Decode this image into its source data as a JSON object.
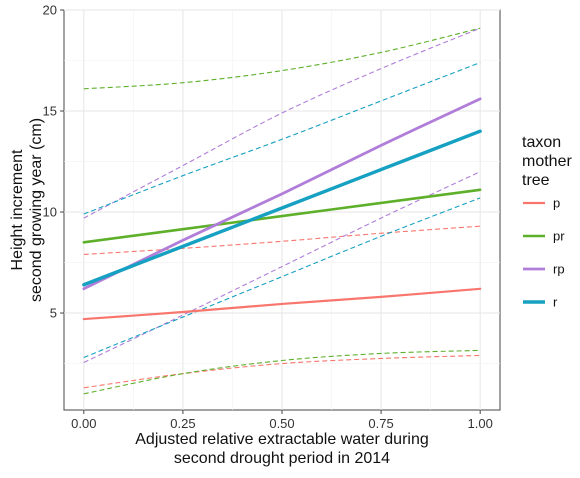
{
  "chart_data": {
    "type": "line",
    "title": "",
    "xlabel": [
      "Adjusted relative extractable water during",
      "second drought period in 2014"
    ],
    "ylabel": [
      "Height increment",
      "second growing year (cm)"
    ],
    "xlim": [
      -0.05,
      1.05
    ],
    "ylim": [
      0.2,
      20
    ],
    "x_ticks": [
      0.0,
      0.25,
      0.5,
      0.75,
      1.0
    ],
    "x_tick_labels": [
      "0.00",
      "0.25",
      "0.50",
      "0.75",
      "1.00"
    ],
    "y_ticks": [
      5,
      10,
      15,
      20
    ],
    "y_tick_labels": [
      "5",
      "10",
      "15",
      "20"
    ],
    "grid": true,
    "legend": {
      "title": [
        "taxon",
        "mother",
        "tree"
      ],
      "placement": "right",
      "entries": [
        "p",
        "pr",
        "rp",
        "r"
      ]
    },
    "x": [
      0.0,
      0.25,
      0.5,
      0.75,
      1.0
    ],
    "series": [
      {
        "name": "p",
        "color": "#f8766d",
        "fit": [
          4.7,
          5.05,
          5.45,
          5.8,
          6.2
        ],
        "lower": [
          1.3,
          2.0,
          2.5,
          2.75,
          2.9
        ],
        "upper": [
          7.9,
          8.2,
          8.55,
          8.95,
          9.3
        ]
      },
      {
        "name": "pr",
        "color": "#5eb02b",
        "fit": [
          8.5,
          9.15,
          9.8,
          10.45,
          11.1
        ],
        "lower": [
          1.0,
          2.0,
          2.65,
          3.0,
          3.15
        ],
        "upper": [
          16.1,
          16.4,
          17.0,
          17.9,
          19.1
        ]
      },
      {
        "name": "rp",
        "color": "#b07ed9",
        "fit": [
          6.2,
          8.6,
          10.9,
          13.3,
          15.6
        ],
        "lower": [
          2.55,
          4.9,
          7.3,
          9.7,
          12.0
        ],
        "upper": [
          9.7,
          12.3,
          14.9,
          17.1,
          19.1
        ]
      },
      {
        "name": "r",
        "color": "#16a0c2",
        "fit": [
          6.4,
          8.3,
          10.2,
          12.1,
          14.0
        ],
        "lower": [
          2.8,
          4.8,
          6.8,
          8.8,
          10.7
        ],
        "upper": [
          9.9,
          11.8,
          13.6,
          15.5,
          17.4
        ]
      }
    ]
  }
}
